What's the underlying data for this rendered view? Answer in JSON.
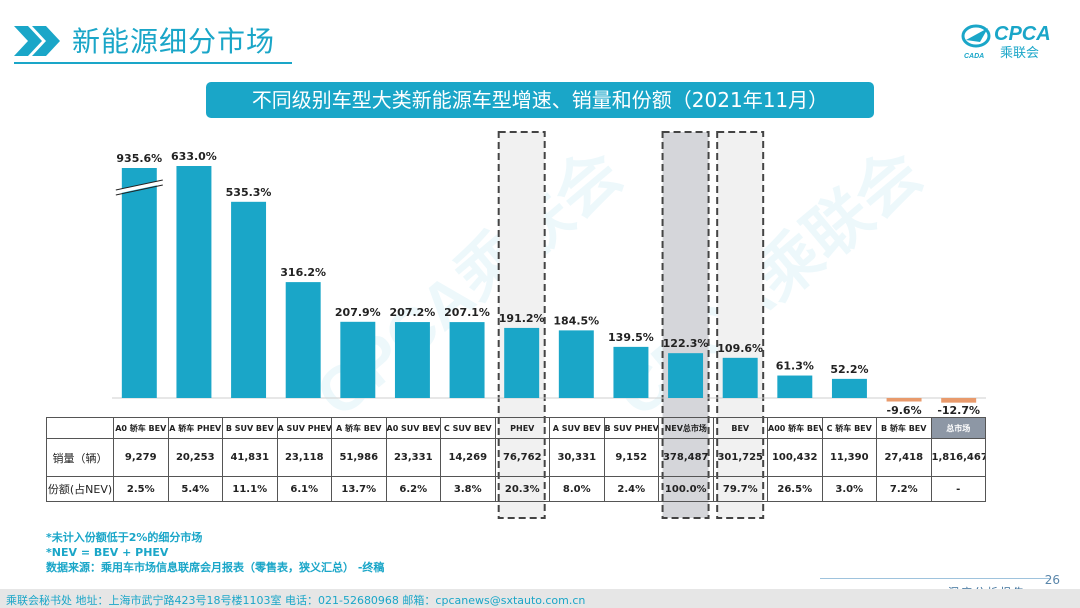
{
  "header": {
    "title": "新能源细分市场",
    "banner": "不同级别车型大类新能源车型增速、销量和份额（2021年11月）",
    "logo_text": "CPCA",
    "logo_sub": "乘联会",
    "logo_small": "CADA"
  },
  "watermark": "CPCA乘联会",
  "chart_data": {
    "type": "bar",
    "title": "不同级别车型大类新能源车型增速、销量和份额（2021年11月）",
    "categories": [
      "A0 轿车 BEV",
      "A 轿车 PHEV",
      "B SUV BEV",
      "A SUV PHEV",
      "A 轿车 BEV",
      "A0 SUV BEV",
      "C SUV BEV",
      "PHEV",
      "A SUV BEV",
      "B SUV PHEV",
      "NEV总市场",
      "BEV",
      "A00 轿车 BEV",
      "C 轿车 BEV",
      "B 轿车 BEV",
      "总市场"
    ],
    "values": [
      935.6,
      633.0,
      535.3,
      316.2,
      207.9,
      207.2,
      207.1,
      191.2,
      184.5,
      139.5,
      122.3,
      109.6,
      61.3,
      52.2,
      -9.6,
      -12.7
    ],
    "labels": [
      "935.6%",
      "633.0%",
      "535.3%",
      "316.2%",
      "207.9%",
      "207.2%",
      "207.1%",
      "191.2%",
      "184.5%",
      "139.5%",
      "122.3%",
      "109.6%",
      "61.3%",
      "52.2%",
      "-9.6%",
      "-12.7%"
    ],
    "broken_axis_first": true,
    "highlight": [
      7,
      10,
      11
    ],
    "series_color": "#1aa6c8",
    "negative_color": "#e89a6c"
  },
  "table": {
    "row_labels": [
      "销量（辆）",
      "份额(占NEV)"
    ],
    "sales": [
      "9,279",
      "20,253",
      "41,831",
      "23,118",
      "51,986",
      "23,331",
      "14,269",
      "76,762",
      "30,331",
      "9,152",
      "378,487",
      "301,725",
      "100,432",
      "11,390",
      "27,418",
      "1,816,467"
    ],
    "share": [
      "2.5%",
      "5.4%",
      "11.1%",
      "6.1%",
      "13.7%",
      "6.2%",
      "3.8%",
      "20.3%",
      "8.0%",
      "2.4%",
      "100.0%",
      "79.7%",
      "26.5%",
      "3.0%",
      "7.2%",
      "-"
    ]
  },
  "notes": [
    "*未计入份额低于2%的细分市场",
    "*NEV = BEV + PHEV",
    "数据来源：乘用车市场信息联席会月报表（零售表，狭义汇总） -终稿"
  ],
  "footer": {
    "text": "乘联会秘书处   地址：上海市武宁路423号18号楼1103室  电话：021-52680968   邮箱：cpcanews@sxtauto.com.cn",
    "report": "深度分析报告",
    "page": "26"
  }
}
